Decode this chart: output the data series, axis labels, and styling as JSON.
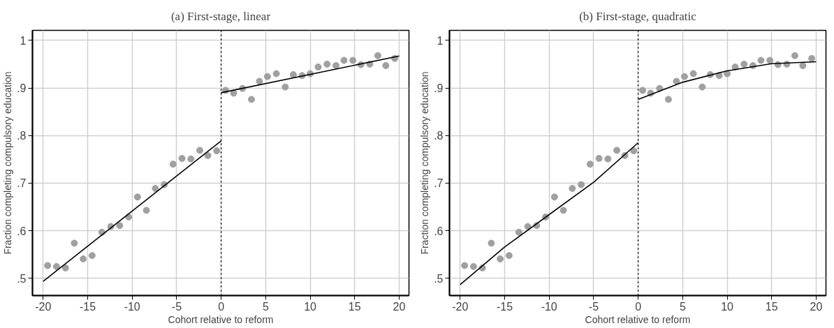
{
  "chart_data": [
    {
      "type": "scatter",
      "title": "(a) First-stage, linear",
      "xlabel": "Cohort relative to reform",
      "ylabel": "Fraction completing compulsory education",
      "xlim": [
        -21.2,
        21.1
      ],
      "ylim": [
        0.464,
        1.021
      ],
      "xticks": [
        -20,
        -15,
        -10,
        -5,
        0,
        5,
        10,
        15,
        20
      ],
      "yticks": [
        {
          "value": 0.5,
          "label": ".5"
        },
        {
          "value": 0.6,
          "label": ".6"
        },
        {
          "value": 0.7,
          "label": ".7"
        },
        {
          "value": 0.8,
          "label": ".8"
        },
        {
          "value": 0.9,
          "label": ".9"
        },
        1
      ],
      "grid": true,
      "marker": "circle",
      "ref_lines": [
        {
          "axis": "x",
          "value": 0,
          "label": null,
          "color": "#000000",
          "line_style": "dotted"
        }
      ],
      "series": [
        {
          "color": "#a0a0a0",
          "x": [
            -19.5,
            -18.5,
            -17.5,
            -16.5,
            -15.5,
            -14.5,
            -13.4,
            -12.4,
            -11.4,
            -10.4,
            -9.4,
            -8.4,
            -7.4,
            -6.4,
            -5.4,
            -4.4,
            -3.4,
            -2.4,
            -1.5,
            -0.5,
            0.5,
            1.4,
            2.4,
            3.4,
            4.3,
            5.2,
            6.2,
            7.2,
            8.1,
            9.1,
            10.0,
            10.9,
            11.9,
            12.9,
            13.8,
            14.8,
            15.7,
            16.7,
            17.6,
            18.5,
            19.5
          ],
          "values": [
            0.527,
            0.525,
            0.522,
            0.574,
            0.541,
            0.548,
            0.597,
            0.609,
            0.611,
            0.629,
            0.671,
            0.643,
            0.689,
            0.697,
            0.74,
            0.752,
            0.751,
            0.769,
            0.758,
            0.768,
            0.895,
            0.889,
            0.899,
            0.876,
            0.914,
            0.924,
            0.93,
            0.902,
            0.928,
            0.926,
            0.93,
            0.944,
            0.95,
            0.947,
            0.958,
            0.958,
            0.949,
            0.95,
            0.968,
            0.947,
            0.962
          ]
        },
        {
          "type": "line",
          "color": "#000000",
          "marker": "none",
          "x": [
            -20,
            0
          ],
          "values": [
            0.494,
            0.789
          ]
        },
        {
          "type": "line",
          "color": "#000000",
          "marker": "none",
          "x": [
            0,
            20
          ],
          "values": [
            0.89,
            0.967
          ]
        }
      ]
    },
    {
      "type": "scatter",
      "title": "(b) First-stage, quadratic",
      "xlabel": "Cohort relative to reform",
      "ylabel": "Fraction completing compulsory education",
      "xlim": [
        -21.2,
        21.1
      ],
      "ylim": [
        0.464,
        1.021
      ],
      "xticks": [
        -20,
        -15,
        -10,
        -5,
        0,
        5,
        10,
        15,
        20
      ],
      "yticks": [
        {
          "value": 0.5,
          "label": ".5"
        },
        {
          "value": 0.6,
          "label": ".6"
        },
        {
          "value": 0.7,
          "label": ".7"
        },
        {
          "value": 0.8,
          "label": ".8"
        },
        {
          "value": 0.9,
          "label": ".9"
        },
        1
      ],
      "grid": true,
      "marker": "circle",
      "ref_lines": [
        {
          "axis": "x",
          "value": 0,
          "label": null,
          "color": "#000000",
          "line_style": "dotted"
        }
      ],
      "series": [
        {
          "color": "#a0a0a0",
          "x": [
            -19.5,
            -18.5,
            -17.5,
            -16.5,
            -15.5,
            -14.5,
            -13.4,
            -12.4,
            -11.4,
            -10.4,
            -9.4,
            -8.4,
            -7.4,
            -6.4,
            -5.4,
            -4.4,
            -3.4,
            -2.4,
            -1.5,
            -0.5,
            0.5,
            1.4,
            2.4,
            3.4,
            4.3,
            5.2,
            6.2,
            7.2,
            8.1,
            9.1,
            10.0,
            10.9,
            11.9,
            12.9,
            13.8,
            14.8,
            15.7,
            16.7,
            17.6,
            18.5,
            19.5
          ],
          "values": [
            0.527,
            0.525,
            0.522,
            0.574,
            0.541,
            0.548,
            0.597,
            0.609,
            0.611,
            0.629,
            0.671,
            0.643,
            0.689,
            0.697,
            0.74,
            0.752,
            0.751,
            0.769,
            0.758,
            0.768,
            0.895,
            0.889,
            0.899,
            0.876,
            0.914,
            0.924,
            0.93,
            0.902,
            0.928,
            0.926,
            0.93,
            0.944,
            0.95,
            0.947,
            0.958,
            0.958,
            0.949,
            0.95,
            0.968,
            0.947,
            0.962
          ]
        },
        {
          "type": "line",
          "color": "#000000",
          "marker": "none",
          "x": [
            -20,
            -15,
            -10,
            -5,
            0
          ],
          "values": [
            0.487,
            0.566,
            0.634,
            0.702,
            0.785
          ]
        },
        {
          "type": "line",
          "color": "#000000",
          "marker": "none",
          "x": [
            0,
            5,
            10,
            15,
            20
          ],
          "values": [
            0.876,
            0.912,
            0.936,
            0.951,
            0.955
          ]
        }
      ]
    }
  ]
}
